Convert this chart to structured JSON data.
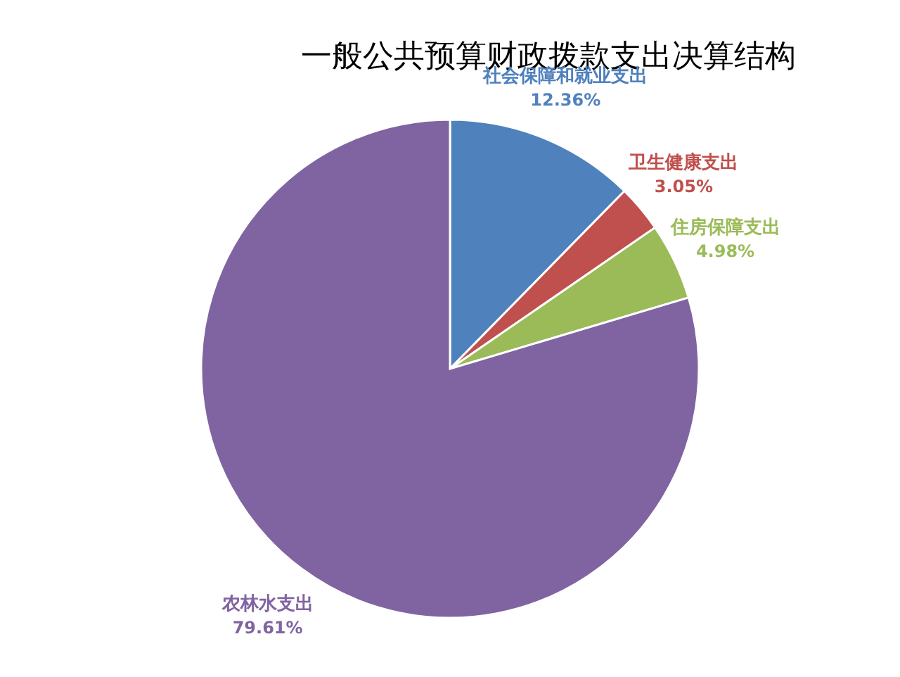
{
  "chart_data": {
    "type": "pie",
    "title": "一般公共预算财政拨款支出决算结构",
    "categories": [
      "社会保障和就业支出",
      "卫生健康支出",
      "住房保障支出",
      "农林水支出"
    ],
    "values": [
      12.36,
      3.05,
      4.98,
      79.61
    ],
    "colors": [
      "#4f81bd",
      "#c0504d",
      "#9bbb59",
      "#8064a2"
    ],
    "data_labels": true,
    "value_labels": [
      "12.36%",
      "3.05%",
      "4.98%",
      "79.61%"
    ]
  }
}
